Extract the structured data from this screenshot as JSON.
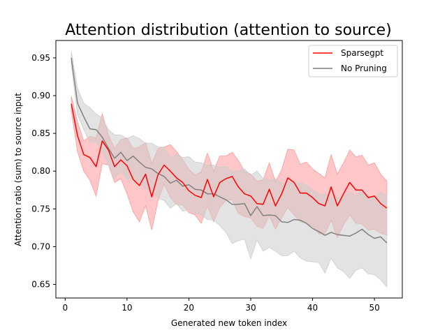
{
  "chart_data": {
    "type": "line",
    "title": "Attention distribution (attention to source)",
    "xlabel": "Generated new token index",
    "ylabel": "Attention ratio (sum) to source input",
    "xlim": [
      -1.5,
      54.5
    ],
    "ylim": [
      0.632,
      0.973
    ],
    "xticks": [
      0,
      10,
      20,
      30,
      40,
      50
    ],
    "yticks": [
      0.65,
      0.7,
      0.75,
      0.8,
      0.85,
      0.9,
      0.95
    ],
    "ytick_labels": [
      "0.65",
      "0.70",
      "0.75",
      "0.80",
      "0.85",
      "0.90",
      "0.95"
    ],
    "grid": false,
    "legend_position": "top-right",
    "x": [
      1,
      2,
      3,
      4,
      5,
      6,
      7,
      8,
      9,
      10,
      11,
      12,
      13,
      14,
      15,
      16,
      17,
      18,
      19,
      20,
      21,
      22,
      23,
      24,
      25,
      26,
      27,
      28,
      29,
      30,
      31,
      32,
      33,
      34,
      35,
      36,
      37,
      38,
      39,
      40,
      41,
      42,
      43,
      44,
      45,
      46,
      47,
      48,
      49,
      50,
      51,
      52
    ],
    "series": [
      {
        "name": "Sparsegpt",
        "color": "#ff0000",
        "band_color": "#ff9999",
        "values": [
          0.889,
          0.847,
          0.822,
          0.818,
          0.806,
          0.84,
          0.828,
          0.806,
          0.815,
          0.807,
          0.789,
          0.781,
          0.796,
          0.766,
          0.795,
          0.808,
          0.8,
          0.791,
          0.785,
          0.774,
          0.768,
          0.765,
          0.789,
          0.766,
          0.785,
          0.79,
          0.793,
          0.779,
          0.77,
          0.767,
          0.757,
          0.756,
          0.776,
          0.754,
          0.77,
          0.791,
          0.785,
          0.771,
          0.771,
          0.765,
          0.757,
          0.754,
          0.779,
          0.754,
          0.77,
          0.785,
          0.775,
          0.775,
          0.765,
          0.767,
          0.757,
          0.751
        ],
        "lower": [
          0.879,
          0.826,
          0.8,
          0.788,
          0.767,
          0.81,
          0.808,
          0.785,
          0.79,
          0.77,
          0.746,
          0.733,
          0.754,
          0.722,
          0.76,
          0.783,
          0.765,
          0.756,
          0.755,
          0.745,
          0.742,
          0.731,
          0.754,
          0.733,
          0.752,
          0.761,
          0.762,
          0.744,
          0.74,
          0.738,
          0.727,
          0.724,
          0.741,
          0.723,
          0.738,
          0.752,
          0.742,
          0.733,
          0.731,
          0.727,
          0.717,
          0.717,
          0.735,
          0.712,
          0.729,
          0.742,
          0.731,
          0.73,
          0.722,
          0.723,
          0.718,
          0.715
        ],
        "upper": [
          0.899,
          0.865,
          0.84,
          0.846,
          0.844,
          0.876,
          0.848,
          0.83,
          0.842,
          0.844,
          0.83,
          0.832,
          0.838,
          0.81,
          0.83,
          0.832,
          0.835,
          0.826,
          0.815,
          0.803,
          0.795,
          0.799,
          0.824,
          0.8,
          0.82,
          0.82,
          0.825,
          0.814,
          0.8,
          0.796,
          0.787,
          0.788,
          0.811,
          0.786,
          0.802,
          0.829,
          0.828,
          0.809,
          0.812,
          0.803,
          0.797,
          0.791,
          0.822,
          0.796,
          0.811,
          0.828,
          0.819,
          0.821,
          0.808,
          0.811,
          0.796,
          0.787
        ]
      },
      {
        "name": "No Pruning",
        "color": "#808080",
        "band_color": "#cccccc",
        "values": [
          0.95,
          0.89,
          0.872,
          0.856,
          0.855,
          0.845,
          0.83,
          0.817,
          0.825,
          0.814,
          0.82,
          0.812,
          0.805,
          0.803,
          0.797,
          0.793,
          0.784,
          0.788,
          0.78,
          0.782,
          0.776,
          0.775,
          0.77,
          0.77,
          0.766,
          0.762,
          0.756,
          0.756,
          0.757,
          0.741,
          0.753,
          0.741,
          0.742,
          0.741,
          0.733,
          0.732,
          0.736,
          0.735,
          0.731,
          0.724,
          0.72,
          0.715,
          0.719,
          0.716,
          0.715,
          0.714,
          0.718,
          0.723,
          0.716,
          0.711,
          0.713,
          0.705
        ],
        "lower": [
          0.94,
          0.875,
          0.855,
          0.838,
          0.838,
          0.826,
          0.808,
          0.791,
          0.799,
          0.789,
          0.793,
          0.784,
          0.777,
          0.774,
          0.764,
          0.761,
          0.751,
          0.757,
          0.747,
          0.749,
          0.744,
          0.742,
          0.736,
          0.735,
          0.728,
          0.719,
          0.704,
          0.708,
          0.71,
          0.684,
          0.709,
          0.694,
          0.699,
          0.694,
          0.688,
          0.688,
          0.694,
          0.685,
          0.681,
          0.68,
          0.679,
          0.665,
          0.685,
          0.672,
          0.667,
          0.658,
          0.669,
          0.672,
          0.664,
          0.663,
          0.656,
          0.647
        ],
        "upper": [
          0.958,
          0.91,
          0.89,
          0.884,
          0.876,
          0.87,
          0.855,
          0.848,
          0.848,
          0.843,
          0.847,
          0.843,
          0.837,
          0.837,
          0.832,
          0.832,
          0.817,
          0.823,
          0.818,
          0.819,
          0.812,
          0.811,
          0.808,
          0.808,
          0.805,
          0.806,
          0.8,
          0.801,
          0.803,
          0.794,
          0.8,
          0.79,
          0.788,
          0.79,
          0.784,
          0.783,
          0.785,
          0.784,
          0.782,
          0.775,
          0.77,
          0.769,
          0.766,
          0.765,
          0.765,
          0.772,
          0.768,
          0.776,
          0.768,
          0.764,
          0.772,
          0.767
        ]
      }
    ]
  }
}
